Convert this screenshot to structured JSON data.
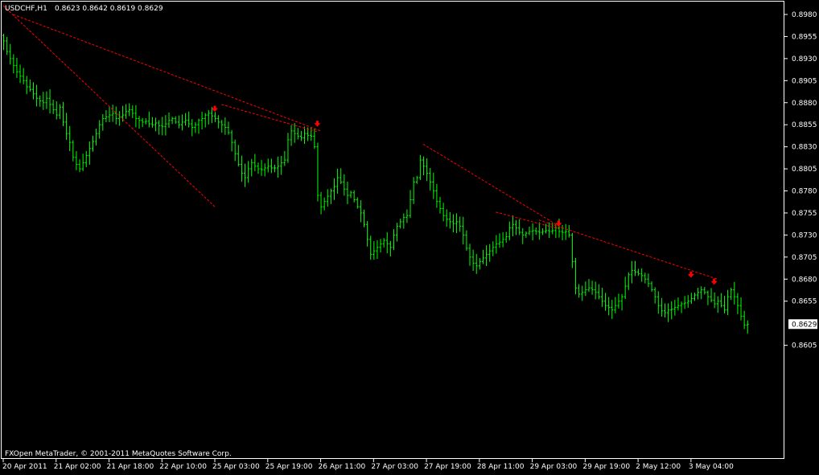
{
  "header": {
    "symbol": "USDCHF,H1",
    "ohlc": "0.8623 0.8642 0.8619 0.8629"
  },
  "footer": {
    "copyright": "FXOpen MetaTrader, © 2001-2011 MetaQuotes Software Corp."
  },
  "colors": {
    "background": "#000000",
    "bars": "#00ff00",
    "frame": "#ffffff",
    "trendlines": "#ff0000",
    "arrows": "#ff0000"
  },
  "chart_data": {
    "type": "ohlc",
    "symbol": "USDCHF",
    "timeframe": "H1",
    "title": "USDCHF,H1",
    "grid": false,
    "ylim": [
      0.8595,
      0.8995
    ],
    "yticks": [
      0.898,
      0.8955,
      0.893,
      0.8905,
      0.888,
      0.8855,
      0.883,
      0.8805,
      0.878,
      0.8755,
      0.873,
      0.8705,
      0.868,
      0.8655,
      0.8605
    ],
    "ytick_labels": [
      "0.8980",
      "0.8955",
      "0.8930",
      "0.8905",
      "0.8880",
      "0.8855",
      "0.8830",
      "0.8805",
      "0.8780",
      "0.8755",
      "0.8730",
      "0.8705",
      "0.8680",
      "0.8655",
      "0.8605"
    ],
    "current_price": 0.8629,
    "current_price_label": "0.8629",
    "xtick_labels": [
      "20 Apr 2011",
      "21 Apr 02:00",
      "21 Apr 18:00",
      "22 Apr 10:00",
      "25 Apr 03:00",
      "25 Apr 19:00",
      "26 Apr 11:00",
      "27 Apr 03:00",
      "27 Apr 19:00",
      "28 Apr 11:00",
      "29 Apr 03:00",
      "29 Apr 19:00",
      "2 May 12:00",
      "3 May 04:00"
    ],
    "xtick_bars": [
      0,
      16,
      32,
      48,
      64,
      80,
      96,
      112,
      128,
      144,
      160,
      176,
      192,
      208
    ],
    "closes": [
      0.895,
      0.8938,
      0.893,
      0.8922,
      0.8915,
      0.891,
      0.8905,
      0.8898,
      0.8895,
      0.889,
      0.8885,
      0.8882,
      0.888,
      0.8885,
      0.8878,
      0.8872,
      0.8866,
      0.8875,
      0.8858,
      0.8845,
      0.8835,
      0.8818,
      0.881,
      0.8805,
      0.8812,
      0.882,
      0.8828,
      0.8836,
      0.8845,
      0.8855,
      0.8862,
      0.8864,
      0.8866,
      0.8868,
      0.8862,
      0.8864,
      0.8866,
      0.887,
      0.8872,
      0.8868,
      0.8862,
      0.886,
      0.8858,
      0.8859,
      0.8856,
      0.8855,
      0.8857,
      0.8854,
      0.8853,
      0.8856,
      0.886,
      0.8862,
      0.8858,
      0.8855,
      0.8858,
      0.886,
      0.8856,
      0.8852,
      0.8855,
      0.886,
      0.8862,
      0.8866,
      0.8868,
      0.8865,
      0.8862,
      0.8858,
      0.8855,
      0.8852,
      0.8846,
      0.8835,
      0.8822,
      0.881,
      0.88,
      0.8795,
      0.8805,
      0.8812,
      0.8808,
      0.8805,
      0.8804,
      0.8806,
      0.8808,
      0.8806,
      0.8806,
      0.8808,
      0.8812,
      0.8815,
      0.8838,
      0.8848,
      0.8845,
      0.8842,
      0.884,
      0.8845,
      0.8843,
      0.8842,
      0.883,
      0.8775,
      0.8762,
      0.8768,
      0.8774,
      0.878,
      0.8785,
      0.8795,
      0.879,
      0.8782,
      0.8775,
      0.8778,
      0.877,
      0.8762,
      0.8755,
      0.8742,
      0.8725,
      0.8708,
      0.8712,
      0.8716,
      0.872,
      0.8724,
      0.872,
      0.8716,
      0.873,
      0.874,
      0.8745,
      0.875,
      0.8752,
      0.877,
      0.879,
      0.8795,
      0.8815,
      0.8808,
      0.88,
      0.879,
      0.878,
      0.8768,
      0.876,
      0.8752,
      0.8748,
      0.8745,
      0.8743,
      0.8745,
      0.874,
      0.873,
      0.8715,
      0.8705,
      0.8698,
      0.8695,
      0.87,
      0.8704,
      0.8708,
      0.8712,
      0.8716,
      0.872,
      0.8722,
      0.8725,
      0.8728,
      0.8738,
      0.8742,
      0.8738,
      0.8733,
      0.873,
      0.8732,
      0.8734,
      0.8735,
      0.8734,
      0.8733,
      0.8734,
      0.8735,
      0.8734,
      0.8735,
      0.8738,
      0.8734,
      0.8733,
      0.8734,
      0.873,
      0.87,
      0.867,
      0.8663,
      0.8665,
      0.8668,
      0.867,
      0.8668,
      0.8665,
      0.866,
      0.8655,
      0.865,
      0.8648,
      0.8645,
      0.865,
      0.8655,
      0.866,
      0.8672,
      0.8685,
      0.869,
      0.8688,
      0.8686,
      0.8684,
      0.868,
      0.8675,
      0.8668,
      0.866,
      0.865,
      0.8644,
      0.8642,
      0.8645,
      0.8646,
      0.8648,
      0.865,
      0.8652,
      0.8653,
      0.8655,
      0.8658,
      0.8662,
      0.8665,
      0.8668,
      0.8665,
      0.866,
      0.8656,
      0.8652,
      0.8655,
      0.865,
      0.8645,
      0.866,
      0.8668,
      0.866,
      0.865,
      0.8638,
      0.8628,
      0.8629
    ],
    "trendlines": [
      {
        "p1": [
          0,
          0.899
        ],
        "p2": [
          64,
          0.8762
        ]
      },
      {
        "p1": [
          3,
          0.898
        ],
        "p2": [
          96,
          0.8848
        ]
      },
      {
        "p1": [
          66,
          0.8878
        ],
        "p2": [
          95,
          0.8847
        ]
      },
      {
        "p1": [
          127,
          0.8833
        ],
        "p2": [
          169,
          0.8738
        ]
      },
      {
        "p1": [
          149,
          0.8756
        ],
        "p2": [
          168,
          0.8737
        ]
      },
      {
        "p1": [
          162,
          0.8747
        ],
        "p2": [
          216,
          0.868
        ]
      }
    ],
    "down_arrows": [
      {
        "bar": 64,
        "price": 0.8871
      },
      {
        "bar": 95,
        "price": 0.8854
      },
      {
        "bar": 168,
        "price": 0.8741
      },
      {
        "bar": 208,
        "price": 0.8683
      },
      {
        "bar": 215,
        "price": 0.8675
      }
    ]
  }
}
